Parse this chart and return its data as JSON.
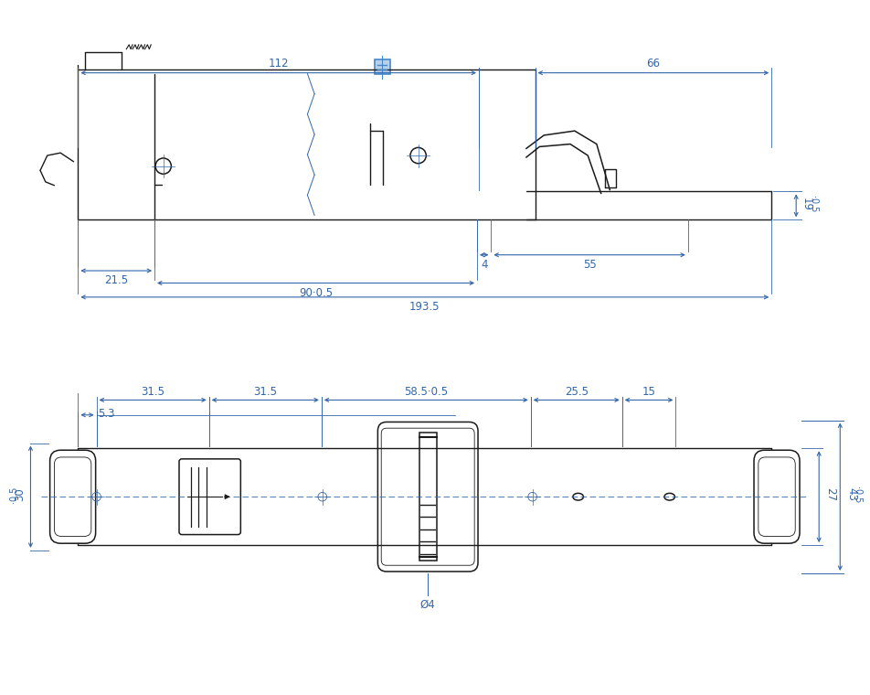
{
  "bg_color": "#ffffff",
  "dim_color": "#3366aa",
  "part_color": "#1a1a1a",
  "blue_accent": "#4488cc",
  "fig_width": 9.3,
  "fig_height": 7.7,
  "top_view": {
    "dim_112_label": "112",
    "dim_66_label": "66",
    "dim_19_label": "19",
    "dim_0_5_label": "0.5",
    "dim_4_label": "4",
    "dim_55_label": "55",
    "dim_21_5_label": "21.5",
    "dim_90_label": "90",
    "dim_90_tol": "0.5",
    "dim_193_5_label": "193.5"
  },
  "bot_view": {
    "dim_5_3_label": "5.3",
    "dim_31_5a_label": "31.5",
    "dim_31_5b_label": "31.5",
    "dim_58_5_label": "58.5",
    "dim_58_5_tol": "0.5",
    "dim_25_5_label": "25.5",
    "dim_15_label": "15",
    "dim_30_label": "30",
    "dim_30_tol": "0.5",
    "dim_27_label": "27",
    "dim_43_label": "43",
    "dim_43_tol": "0.5",
    "dim_d4_label": "Ø4"
  }
}
